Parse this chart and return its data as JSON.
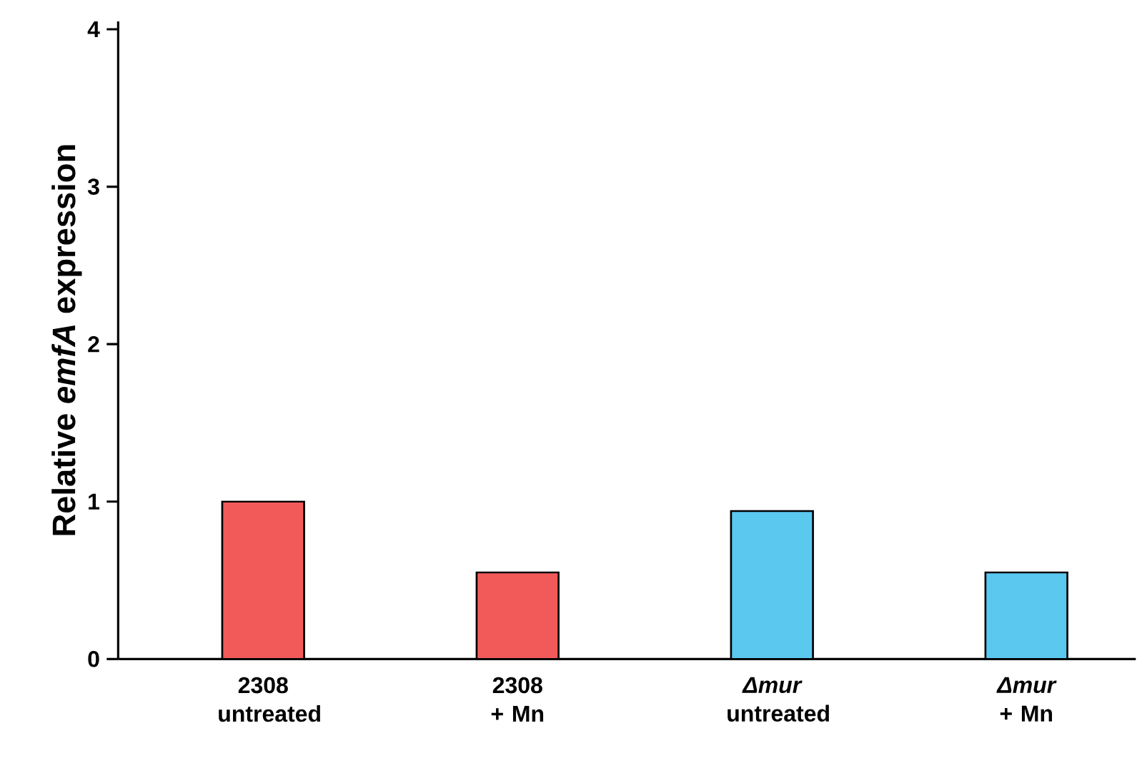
{
  "chart_data": {
    "type": "bar",
    "ylabel": "Relative *emfA* expression",
    "categories": [
      "2308 untreated",
      "2308 + Mn",
      "*Δmur* untreated",
      "*Δmur* + Mn"
    ],
    "values": [
      1.0,
      0.55,
      0.94,
      0.55
    ],
    "colors": [
      "#f25a5a",
      "#f25a5a",
      "#5bc8f0",
      "#5bc8f0"
    ],
    "ylim": [
      0,
      4.05
    ],
    "yticks": [
      0,
      1,
      2,
      3,
      4
    ],
    "grid": false
  }
}
